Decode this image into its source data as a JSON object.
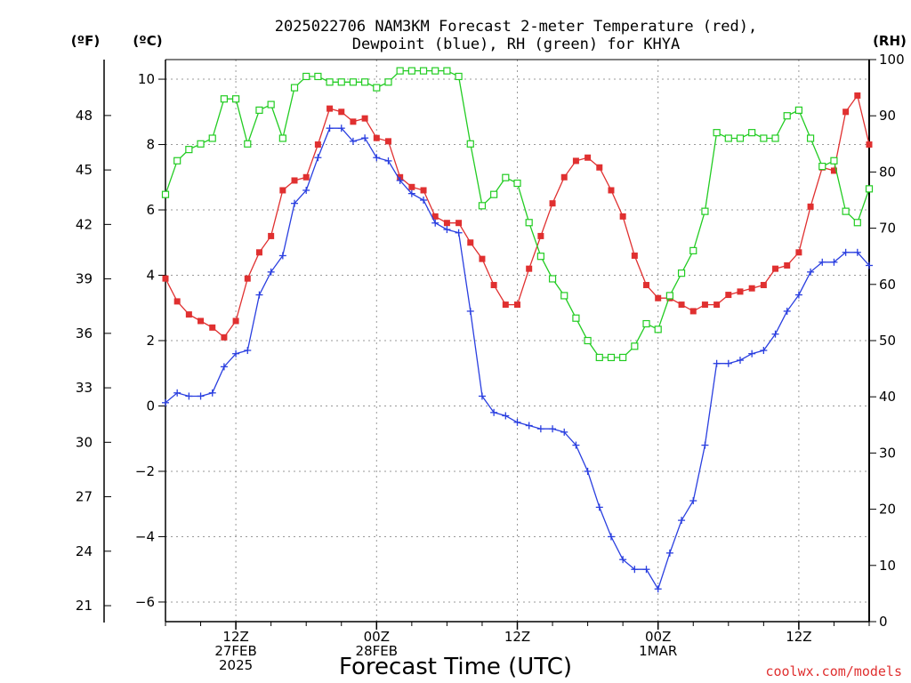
{
  "chart_data": {
    "type": "line",
    "title_line1": "2025022706 NAM3KM Forecast 2-meter Temperature (red),",
    "title_line2": "Dewpoint (blue), RH (green) for KHYA",
    "xlabel": "Forecast Time (UTC)",
    "credit": "coolwx.com/models",
    "left_unit_f": "(ºF)",
    "left_unit_c": "(ºC)",
    "right_unit": "(RH)",
    "x_hours_from_start": {
      "start": 0,
      "end": 60,
      "step": 1
    },
    "x_ticks": [
      {
        "h": 6,
        "lines": [
          "12Z",
          "27FEB",
          "2025"
        ]
      },
      {
        "h": 18,
        "lines": [
          "00Z",
          "28FEB"
        ]
      },
      {
        "h": 30,
        "lines": [
          "12Z"
        ]
      },
      {
        "h": 42,
        "lines": [
          "00Z",
          "1MAR"
        ]
      },
      {
        "h": 54,
        "lines": [
          "12Z"
        ]
      }
    ],
    "yC_range": [
      -6.6,
      10.6
    ],
    "yC_ticks": [
      "-6",
      "-4",
      "-2",
      "0",
      "2",
      "4",
      "6",
      "8",
      "10"
    ],
    "yF_ticks": [
      "21",
      "24",
      "27",
      "30",
      "33",
      "36",
      "39",
      "42",
      "45",
      "48"
    ],
    "yRH_range": [
      0,
      100
    ],
    "yRH_ticks": [
      "0",
      "10",
      "20",
      "30",
      "40",
      "50",
      "60",
      "70",
      "80",
      "90",
      "100"
    ],
    "series": [
      {
        "name": "Temperature",
        "axis": "C",
        "color": "#e03030",
        "marker": "filled-square",
        "values": [
          3.9,
          3.2,
          2.8,
          2.6,
          2.4,
          2.1,
          2.6,
          3.9,
          4.7,
          5.2,
          6.6,
          6.9,
          7.0,
          8.0,
          9.1,
          9.0,
          8.7,
          8.8,
          8.2,
          8.1,
          7.0,
          6.7,
          6.6,
          5.8,
          5.6,
          5.6,
          5.0,
          4.5,
          3.7,
          3.1,
          3.1,
          4.2,
          5.2,
          6.2,
          7.0,
          7.5,
          7.6,
          7.3,
          6.6,
          5.8,
          4.6,
          3.7,
          3.3,
          3.3,
          3.1,
          2.9,
          3.1,
          3.1,
          3.4,
          3.5,
          3.6,
          3.7,
          4.2,
          4.3,
          4.7,
          6.1,
          7.3,
          7.2,
          9.0,
          9.5,
          8.0
        ]
      },
      {
        "name": "Dewpoint",
        "axis": "C",
        "color": "#2a3fe0",
        "marker": "plus",
        "values": [
          0.1,
          0.4,
          0.3,
          0.3,
          0.4,
          1.2,
          1.6,
          1.7,
          3.4,
          4.1,
          4.6,
          6.2,
          6.6,
          7.6,
          8.5,
          8.5,
          8.1,
          8.2,
          7.6,
          7.5,
          6.9,
          6.5,
          6.3,
          5.6,
          5.4,
          5.3,
          2.9,
          0.3,
          -0.2,
          -0.3,
          -0.5,
          -0.6,
          -0.7,
          -0.7,
          -0.8,
          -1.2,
          -2.0,
          -3.1,
          -4.0,
          -4.7,
          -5.0,
          -5.0,
          -5.6,
          -4.5,
          -3.5,
          -2.9,
          -1.2,
          1.3,
          1.3,
          1.4,
          1.6,
          1.7,
          2.2,
          2.9,
          3.4,
          4.1,
          4.4,
          4.4,
          4.7,
          4.7,
          4.3
        ]
      },
      {
        "name": "RH",
        "axis": "RH",
        "color": "#22cc22",
        "marker": "open-square",
        "values": [
          76,
          82,
          84,
          85,
          86,
          93,
          93,
          85,
          91,
          92,
          86,
          95,
          97,
          97,
          96,
          96,
          96,
          96,
          95,
          96,
          98,
          98,
          98,
          98,
          98,
          97,
          85,
          74,
          76,
          79,
          78,
          71,
          65,
          61,
          58,
          54,
          50,
          47,
          47,
          47,
          49,
          53,
          52,
          58,
          62,
          66,
          73,
          87,
          86,
          86,
          87,
          86,
          86,
          90,
          91,
          86,
          81,
          82,
          73,
          71,
          77
        ]
      }
    ]
  }
}
